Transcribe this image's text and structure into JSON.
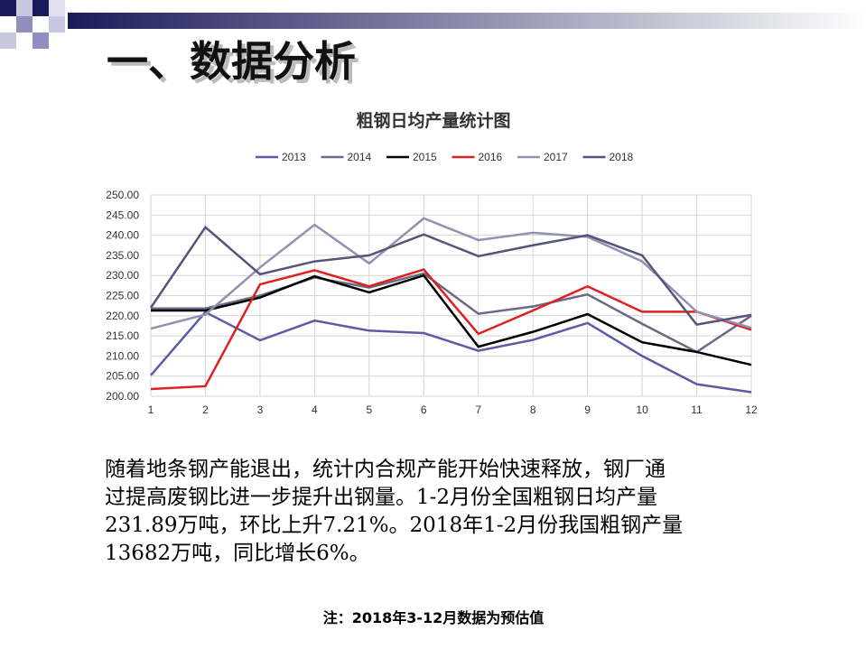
{
  "header": {
    "title": "一、数据分析"
  },
  "chart_data": {
    "type": "line",
    "title": "粗钢日均产量统计图",
    "categories": [
      "1",
      "2",
      "3",
      "4",
      "5",
      "6",
      "7",
      "8",
      "9",
      "10",
      "11",
      "12"
    ],
    "series": [
      {
        "name": "2013",
        "color": "#5c5ca6",
        "values": [
          205.2,
          220.9,
          213.9,
          218.8,
          216.3,
          215.7,
          211.3,
          214,
          218.2,
          210,
          203,
          201
        ]
      },
      {
        "name": "2014",
        "color": "#6a6a86",
        "values": [
          221.8,
          221.8,
          225,
          229.5,
          227,
          230.5,
          220.5,
          222.3,
          225.3,
          218,
          211,
          220
        ]
      },
      {
        "name": "2015",
        "color": "#000000",
        "values": [
          221.3,
          221.3,
          224.5,
          229.8,
          225.8,
          230,
          212.3,
          216,
          220.4,
          213.4,
          211,
          207.8
        ]
      },
      {
        "name": "2016",
        "color": "#e02020",
        "values": [
          201.8,
          202.5,
          227.8,
          231.3,
          227.3,
          231.5,
          215.5,
          221.3,
          227.3,
          221,
          221,
          216.5
        ]
      },
      {
        "name": "2017",
        "color": "#9191b2",
        "values": [
          216.8,
          220.3,
          232,
          242.6,
          233,
          244.2,
          238.8,
          240.6,
          239.6,
          233.5,
          221,
          217
        ]
      },
      {
        "name": "2018",
        "color": "#55557a",
        "values": [
          222,
          242,
          230.3,
          233.5,
          235,
          240.2,
          234.8,
          237.5,
          240,
          235,
          217.8,
          220.2
        ]
      }
    ],
    "ylim": [
      200,
      250
    ],
    "yticks": [
      {
        "value": 200,
        "label": "200.00"
      },
      {
        "value": 205,
        "label": "205.00"
      },
      {
        "value": 210,
        "label": "210.00"
      },
      {
        "value": 215,
        "label": "215.00"
      },
      {
        "value": 220,
        "label": "220.00"
      },
      {
        "value": 225,
        "label": "225.00"
      },
      {
        "value": 230,
        "label": "230.00"
      },
      {
        "value": 235,
        "label": "235.00"
      },
      {
        "value": 240,
        "label": "240.00"
      },
      {
        "value": 245,
        "label": "245.00"
      },
      {
        "value": 250,
        "label": "250.00"
      }
    ],
    "grid": true,
    "legend": "top"
  },
  "body": {
    "lines": [
      "随着地条钢产能退出，统计内合规产能开始快速释放，钢厂通",
      "过提高废钢比进一步提升出钢量。1-2月份全国粗钢日均产量",
      "231.89万吨，环比上升7.21%。2018年1-2月份我国粗钢产量",
      "13682万吨，同比增长6%。"
    ]
  },
  "footnote": "注：2018年3-12月数据为预估值"
}
